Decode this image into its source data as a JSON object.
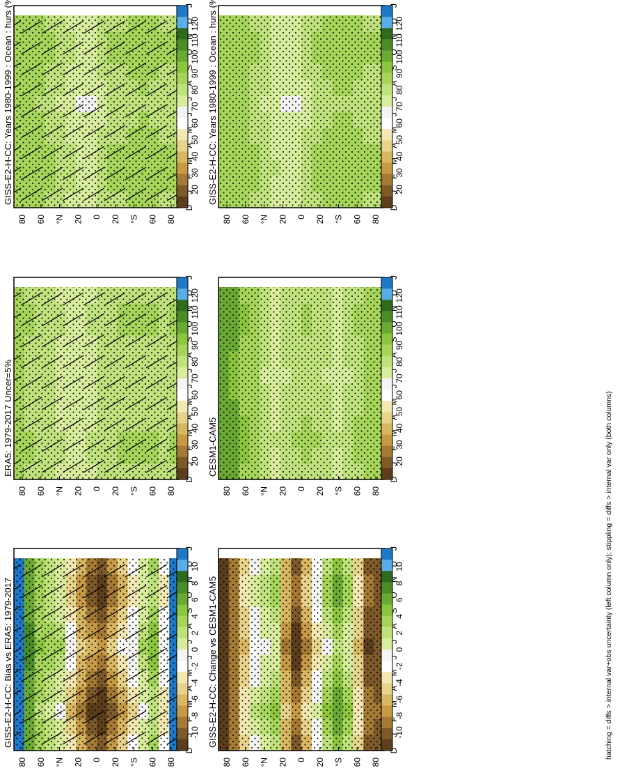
{
  "figure": {
    "caption": "hatching = diffs > internal var+obs uncertainty (left column only); stippling = diffs > internal var only (both columns)",
    "month_labels": [
      "D",
      "J",
      "F",
      "M",
      "A",
      "M",
      "J",
      "J",
      "A",
      "S",
      "O",
      "N",
      "D",
      "J"
    ],
    "lat_labels": [
      "80",
      "60",
      "°N",
      "20",
      "0",
      "20",
      "°S",
      "60",
      "80"
    ]
  },
  "colors": {
    "abs_scale": [
      "#1f78c8",
      "#5aaee8",
      "#2e6b1f",
      "#4a8c2a",
      "#6aaa34",
      "#8cc63f",
      "#a6d55a",
      "#c0e27d",
      "#d7ed9d",
      "#f4f4f4",
      "#ffffff",
      "#f3e8b4",
      "#e8d38c",
      "#d8b662",
      "#c79a45",
      "#a57a35",
      "#7e5a2a",
      "#5c3e1c"
    ],
    "diff_scale": [
      "#1f78c8",
      "#5aaee8",
      "#2e6b1f",
      "#4a8c2a",
      "#6aaa34",
      "#8cc63f",
      "#a6d55a",
      "#c0e27d",
      "#d7ed9d",
      "#f4f4f4",
      "#ffffff",
      "#f3e8b4",
      "#e8d38c",
      "#d8b662",
      "#c79a45",
      "#a57a35",
      "#7e5a2a",
      "#5c3e1c"
    ]
  },
  "chart_data": [
    {
      "type": "heatmap",
      "title": "GISS-E2-H-CC: Years 1980-1999 : Ocean : hurs (%)",
      "colorbar_ticks": [
        "120",
        "110",
        "100",
        "90",
        "80",
        "70",
        "60",
        "50",
        "40",
        "30",
        "20"
      ],
      "hatching": true,
      "stippling": true,
      "lat_profile": [
        88,
        88,
        85,
        84,
        80,
        78,
        74,
        74,
        79,
        83,
        84,
        85,
        86,
        85,
        84,
        84
      ],
      "seasonal": [
        0,
        1,
        2,
        1,
        0,
        -1,
        -2,
        -1,
        0,
        1,
        1,
        0
      ]
    },
    {
      "type": "heatmap",
      "title": "GISS-E2-H-CC: Years 1980-1999 : Ocean : hurs (%)",
      "colorbar_ticks": [
        "120",
        "110",
        "100",
        "90",
        "80",
        "70",
        "60",
        "50",
        "40",
        "30",
        "20"
      ],
      "hatching": false,
      "stippling": true,
      "lat_profile": [
        88,
        87,
        86,
        84,
        80,
        77,
        74,
        74,
        79,
        83,
        85,
        86,
        86,
        85,
        84,
        84
      ],
      "seasonal": [
        0,
        1,
        2,
        1,
        0,
        -1,
        -2,
        -1,
        0,
        1,
        1,
        0
      ]
    },
    {
      "type": "heatmap",
      "title": "ERA5: 1979-2017 Uncer=5%",
      "colorbar_ticks": [
        "120",
        "110",
        "100",
        "90",
        "80",
        "70",
        "60",
        "50",
        "40",
        "30",
        "20"
      ],
      "hatching": true,
      "stippling": true,
      "lat_profile": [
        85,
        84,
        83,
        81,
        78,
        76,
        75,
        77,
        80,
        82,
        83,
        84,
        84,
        84,
        83,
        84
      ],
      "seasonal": [
        0,
        1,
        1,
        0,
        0,
        -1,
        -1,
        0,
        0,
        1,
        1,
        0
      ]
    },
    {
      "type": "heatmap",
      "title": "CESM1-CAM5",
      "colorbar_ticks": [
        "120",
        "110",
        "100",
        "90",
        "80",
        "70",
        "60",
        "50",
        "40",
        "30",
        "20"
      ],
      "hatching": false,
      "stippling": true,
      "lat_profile": [
        100,
        96,
        90,
        86,
        80,
        77,
        80,
        82,
        83,
        82,
        80,
        77,
        80,
        84,
        88,
        86
      ],
      "seasonal": [
        0,
        1,
        2,
        1,
        0,
        -1,
        -2,
        -1,
        0,
        1,
        1,
        0
      ]
    },
    {
      "type": "heatmap",
      "title": "GISS-E2-H-CC: Bias vs ERA5: 1979-2017",
      "colorbar_ticks": [
        "10",
        "8",
        "6",
        "4",
        "2",
        "0",
        "-2",
        "-4",
        "-6",
        "-8",
        "-10"
      ],
      "hatching": true,
      "stippling": true,
      "lat_profile": [
        11,
        6,
        3,
        2,
        1,
        -3,
        -6,
        -8,
        -9,
        -7,
        -4,
        -2,
        1,
        3,
        -2,
        11
      ],
      "seasonal": [
        0,
        -1,
        -2,
        -1,
        0,
        1,
        2,
        1,
        0,
        -1,
        -1,
        0
      ]
    },
    {
      "type": "heatmap",
      "title": "GISS-E2-H-CC: Change vs CESM1-CAM5",
      "colorbar_ticks": [
        "10",
        "8",
        "6",
        "4",
        "2",
        "0",
        "-2",
        "-4",
        "-6",
        "-8",
        "-10"
      ],
      "hatching": false,
      "stippling": true,
      "lat_profile": [
        -10,
        -8,
        -4,
        0,
        1,
        2,
        -6,
        -9,
        -6,
        -2,
        2,
        4,
        2,
        -4,
        -9,
        -9
      ],
      "seasonal": [
        0,
        1,
        2,
        1,
        0,
        -1,
        -2,
        -1,
        0,
        1,
        1,
        0
      ]
    }
  ]
}
